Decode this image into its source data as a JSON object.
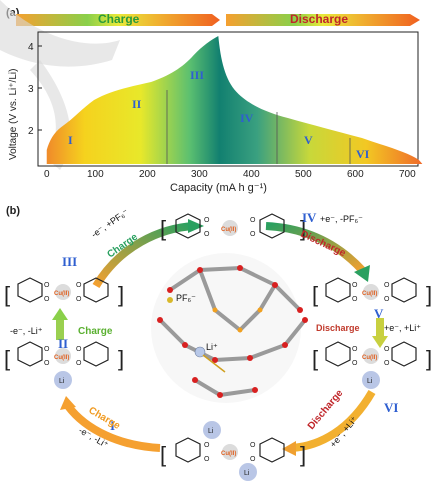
{
  "panel_a": {
    "label": "(a)",
    "charge_label": "Charge",
    "discharge_label": "Discharge",
    "y_axis_label": "Voltage (V vs. Li⁺/Li)",
    "x_axis_label": "Capacity (mA h g⁻¹)",
    "x_ticks": [
      "0",
      "100",
      "200",
      "300",
      "400",
      "500",
      "600",
      "700"
    ],
    "y_ticks": [
      "2",
      "3",
      "4"
    ],
    "stages": [
      "I",
      "II",
      "III",
      "IV",
      "V",
      "VI"
    ]
  },
  "panel_b": {
    "label": "(b)",
    "steps": {
      "s1": {
        "roman": "I",
        "reaction": "-e⁻, -Li⁺",
        "word": "Charge"
      },
      "s2": {
        "roman": "II",
        "reaction": "-e⁻, -Li⁺",
        "word": "Charge"
      },
      "s3": {
        "roman": "III",
        "reaction": "-e⁻, +PF₆⁻",
        "word": "Charge"
      },
      "s4": {
        "roman": "IV",
        "reaction": "+e⁻, -PF₆⁻",
        "word": "Discharge"
      },
      "s5": {
        "roman": "V",
        "reaction": "+e⁻, +Li⁺",
        "word": "Discharge"
      },
      "s6": {
        "roman": "VI",
        "reaction": "+e⁻, +Li⁺",
        "word": "Discharge"
      }
    },
    "center_metal": "Cu(II)",
    "lithium": "Li",
    "center_labels": {
      "pf6": "PF₆⁻",
      "li": "Li⁺"
    }
  }
}
